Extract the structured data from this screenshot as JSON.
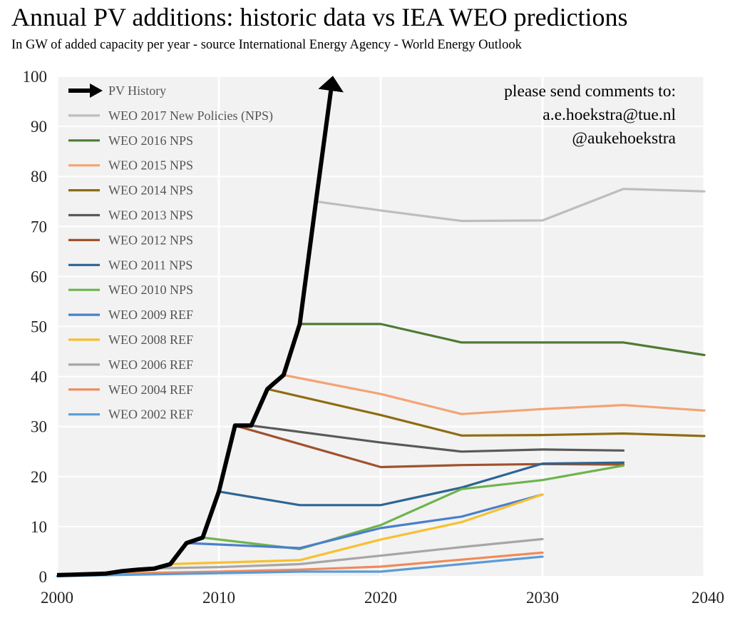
{
  "header": {
    "title": "Annual PV additions: historic data vs IEA WEO predictions",
    "subtitle": "In GW of added capacity per year - source International Energy Agency - World Energy Outlook"
  },
  "note": {
    "line1": "please send comments to:",
    "line2": "a.e.hoekstra@tue.nl",
    "line3": "@aukehoekstra"
  },
  "colors": {
    "plot_background": "#f2f2f2",
    "gridline": "#ffffff"
  },
  "chart_data": {
    "type": "line",
    "title": "Annual PV additions: historic data vs IEA WEO predictions",
    "subtitle": "In GW of added capacity per year - source International Energy Agency - World Energy Outlook",
    "xlabel": "",
    "ylabel": "",
    "xlim": [
      2000,
      2040
    ],
    "ylim": [
      0,
      100
    ],
    "xticks": [
      2000,
      2010,
      2020,
      2030,
      2040
    ],
    "yticks": [
      0,
      10,
      20,
      30,
      40,
      50,
      60,
      70,
      80,
      90,
      100
    ],
    "grid": true,
    "legend_position": "top-left",
    "series": [
      {
        "name": "PV History",
        "color": "#000000",
        "arrow": true,
        "points": [
          [
            2000,
            0.3
          ],
          [
            2001,
            0.4
          ],
          [
            2002,
            0.5
          ],
          [
            2003,
            0.6
          ],
          [
            2004,
            1.1
          ],
          [
            2005,
            1.4
          ],
          [
            2006,
            1.6
          ],
          [
            2007,
            2.5
          ],
          [
            2008,
            6.7
          ],
          [
            2009,
            7.8
          ],
          [
            2010,
            17
          ],
          [
            2011,
            30.2
          ],
          [
            2012,
            30.2
          ],
          [
            2013,
            37.5
          ],
          [
            2014,
            40.3
          ],
          [
            2015,
            50.5
          ],
          [
            2016,
            75
          ],
          [
            2017,
            99
          ]
        ]
      },
      {
        "name": "WEO 2017 New Policies (NPS)",
        "color": "#bdbdbd",
        "points": [
          [
            2016,
            75
          ],
          [
            2020,
            73.2
          ],
          [
            2025,
            71.1
          ],
          [
            2030,
            71.2
          ],
          [
            2035,
            77.5
          ],
          [
            2040,
            77
          ]
        ]
      },
      {
        "name": "WEO 2016 NPS",
        "color": "#4f7a35",
        "points": [
          [
            2015,
            50.5
          ],
          [
            2020,
            50.5
          ],
          [
            2025,
            46.8
          ],
          [
            2030,
            46.8
          ],
          [
            2035,
            46.8
          ],
          [
            2040,
            44.3
          ]
        ]
      },
      {
        "name": "WEO 2015 NPS",
        "color": "#f4a374",
        "points": [
          [
            2014,
            40.3
          ],
          [
            2020,
            36.5
          ],
          [
            2025,
            32.5
          ],
          [
            2030,
            33.5
          ],
          [
            2035,
            34.3
          ],
          [
            2040,
            33.2
          ]
        ]
      },
      {
        "name": "WEO 2014 NPS",
        "color": "#8f6c12",
        "points": [
          [
            2013,
            37.5
          ],
          [
            2020,
            32.3
          ],
          [
            2025,
            28.2
          ],
          [
            2030,
            28.3
          ],
          [
            2035,
            28.6
          ],
          [
            2040,
            28.1
          ]
        ]
      },
      {
        "name": "WEO 2013 NPS",
        "color": "#595959",
        "points": [
          [
            2012,
            30.2
          ],
          [
            2020,
            26.8
          ],
          [
            2025,
            25
          ],
          [
            2030,
            25.4
          ],
          [
            2035,
            25.2
          ]
        ]
      },
      {
        "name": "WEO 2012 NPS",
        "color": "#a0522d",
        "points": [
          [
            2011,
            30.2
          ],
          [
            2020,
            21.9
          ],
          [
            2025,
            22.3
          ],
          [
            2030,
            22.5
          ],
          [
            2035,
            22.4
          ]
        ]
      },
      {
        "name": "WEO 2011 NPS",
        "color": "#2e6494",
        "points": [
          [
            2010,
            17
          ],
          [
            2015,
            14.3
          ],
          [
            2020,
            14.3
          ],
          [
            2025,
            17.8
          ],
          [
            2030,
            22.6
          ],
          [
            2035,
            22.8
          ]
        ]
      },
      {
        "name": "WEO 2010 NPS",
        "color": "#6db44c",
        "points": [
          [
            2009,
            7.8
          ],
          [
            2015,
            5.5
          ],
          [
            2020,
            10.3
          ],
          [
            2025,
            17.5
          ],
          [
            2030,
            19.3
          ],
          [
            2035,
            22.2
          ]
        ]
      },
      {
        "name": "WEO 2009 REF",
        "color": "#4a7fcc",
        "points": [
          [
            2008,
            6.7
          ],
          [
            2015,
            5.7
          ],
          [
            2020,
            9.7
          ],
          [
            2025,
            12
          ],
          [
            2030,
            16.4
          ]
        ]
      },
      {
        "name": "WEO 2008 REF",
        "color": "#f7c02f",
        "points": [
          [
            2007,
            2.5
          ],
          [
            2015,
            3.3
          ],
          [
            2020,
            7.4
          ],
          [
            2025,
            10.9
          ],
          [
            2030,
            16.4
          ]
        ]
      },
      {
        "name": "WEO 2006 REF",
        "color": "#a6a6a6",
        "points": [
          [
            2005,
            1.6
          ],
          [
            2010,
            1.9
          ],
          [
            2015,
            2.5
          ],
          [
            2020,
            4.2
          ],
          [
            2025,
            5.9
          ],
          [
            2030,
            7.5
          ]
        ]
      },
      {
        "name": "WEO 2004 REF",
        "color": "#f08a5a",
        "points": [
          [
            2003,
            0.6
          ],
          [
            2010,
            1
          ],
          [
            2015,
            1.4
          ],
          [
            2020,
            2
          ],
          [
            2025,
            3.4
          ],
          [
            2030,
            4.8
          ]
        ]
      },
      {
        "name": "WEO 2002 REF",
        "color": "#5b9bd5",
        "points": [
          [
            2000,
            0.1
          ],
          [
            2010,
            0.7
          ],
          [
            2015,
            1
          ],
          [
            2020,
            1
          ],
          [
            2025,
            2.5
          ],
          [
            2030,
            4
          ]
        ]
      }
    ]
  }
}
